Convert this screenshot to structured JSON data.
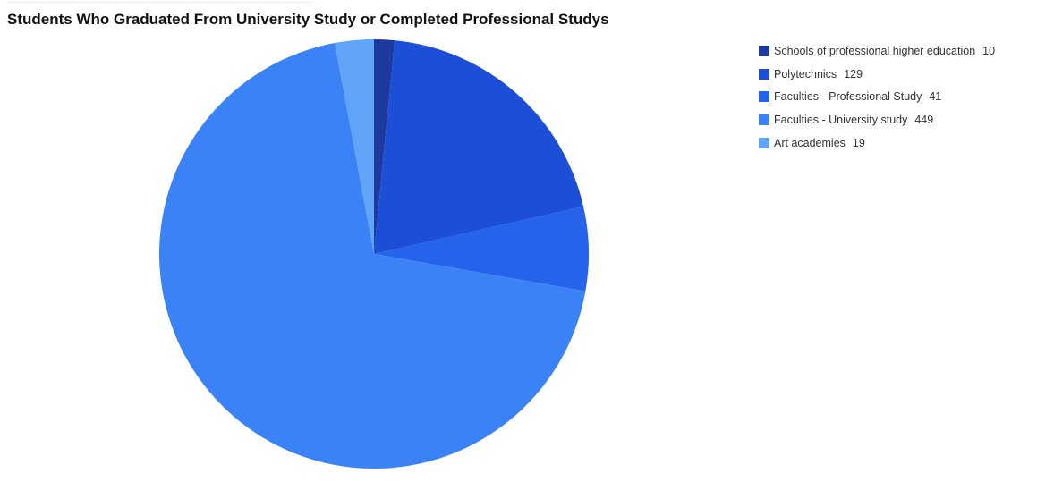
{
  "chart_data": {
    "type": "pie",
    "title": "Students Who Graduated From University Study or Completed Professional Studys",
    "legend_position": "top-right",
    "slices": [
      {
        "label": "Schools of professional higher education",
        "value": 10,
        "color": "#1e3a9e"
      },
      {
        "label": "Polytechnics",
        "value": 129,
        "color": "#1d4ed8"
      },
      {
        "label": "Faculties - Professional Study",
        "value": 41,
        "color": "#2563eb"
      },
      {
        "label": "Faculties - University study",
        "value": 449,
        "color": "#3b82f6"
      },
      {
        "label": "Art academies",
        "value": 19,
        "color": "#60a5fa"
      }
    ]
  }
}
